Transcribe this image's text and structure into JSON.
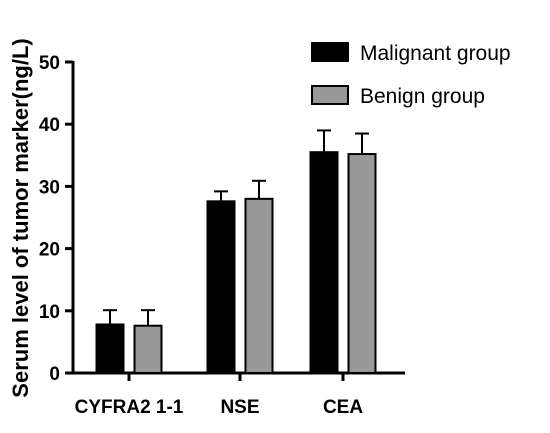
{
  "chart_data": {
    "type": "bar",
    "categories": [
      "CYFRA2 1-1",
      "NSE",
      "CEA"
    ],
    "series": [
      {
        "name": "Malignant group",
        "values": [
          7.8,
          27.6,
          35.5
        ],
        "errors": [
          2.3,
          1.6,
          3.5
        ],
        "color": "#000000"
      },
      {
        "name": "Benign group",
        "values": [
          7.6,
          28.0,
          35.2
        ],
        "errors": [
          2.5,
          2.9,
          3.3
        ],
        "color": "#999999"
      }
    ],
    "title": "",
    "xlabel": "",
    "ylabel": "Serum level of tumor marker(ng/L)",
    "ylim": [
      0,
      50
    ],
    "yticks": [
      0,
      10,
      20,
      30,
      40,
      50
    ],
    "grid": false,
    "legend_position": "top-right"
  }
}
